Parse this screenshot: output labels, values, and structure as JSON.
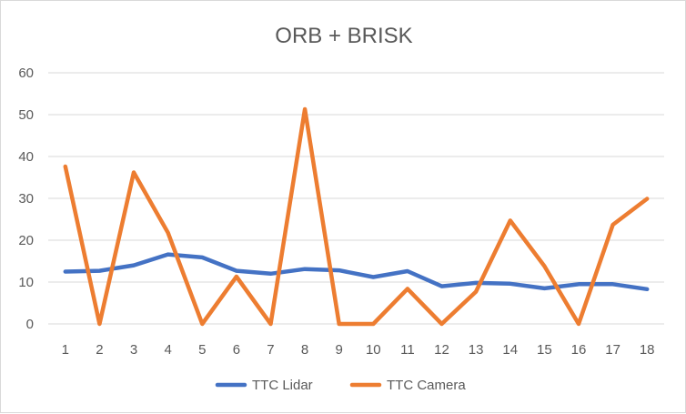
{
  "chart_data": {
    "type": "line",
    "title": "ORB + BRISK",
    "xlabel": "",
    "ylabel": "",
    "x": [
      "1",
      "2",
      "3",
      "4",
      "5",
      "6",
      "7",
      "8",
      "9",
      "10",
      "11",
      "12",
      "13",
      "14",
      "15",
      "16",
      "17",
      "18"
    ],
    "ylim": [
      0,
      60
    ],
    "yticks": [
      0,
      10,
      20,
      30,
      40,
      50,
      60
    ],
    "grid": true,
    "legend_position": "bottom",
    "series": [
      {
        "name": "TTC Lidar",
        "color": "#4472C4",
        "values": [
          12.5,
          12.7,
          14.0,
          16.6,
          15.9,
          12.7,
          12.0,
          13.1,
          12.8,
          11.2,
          12.6,
          9.0,
          9.8,
          9.6,
          8.5,
          9.5,
          9.5,
          8.3
        ]
      },
      {
        "name": "TTC Camera",
        "color": "#ED7D31",
        "values": [
          37.6,
          0,
          36.2,
          21.8,
          0,
          11.3,
          0,
          51.3,
          0,
          0,
          8.4,
          0,
          7.7,
          24.7,
          13.8,
          0,
          23.7,
          29.9
        ]
      }
    ]
  }
}
